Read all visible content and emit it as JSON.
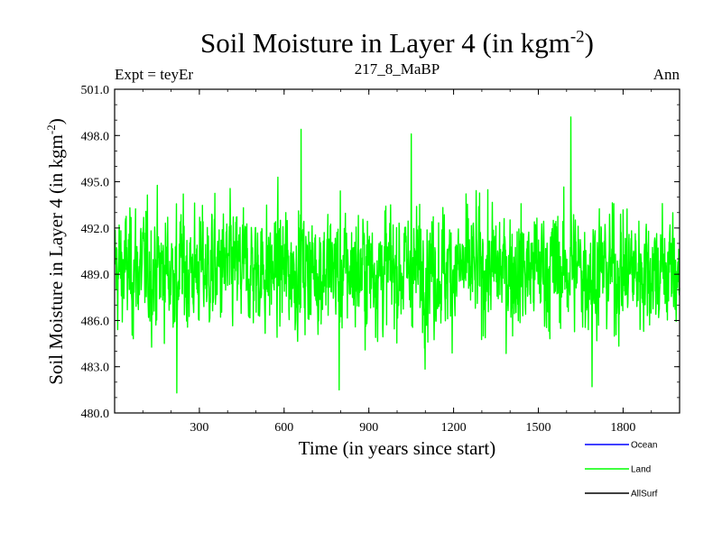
{
  "header": {
    "title": "Soil Moisture in Layer 4 (in kgm",
    "title_exp": "-2",
    "title_close": ")",
    "left": "Expt = teyEr",
    "center": "217_8_MaBP",
    "right": "Ann"
  },
  "chart_data": {
    "type": "line",
    "xlabel": "Time (in years since start)",
    "ylabel": "Soil Moisture in Layer 4 (in kgm",
    "ylabel_exp": "-2",
    "ylabel_close": ")",
    "xlim": [
      0,
      2000
    ],
    "ylim": [
      480.0,
      501.0
    ],
    "x_ticks": [
      300,
      600,
      900,
      1200,
      1500,
      1800
    ],
    "y_ticks": [
      "480.0",
      "483.0",
      "486.0",
      "489.0",
      "492.0",
      "495.0",
      "498.0",
      "501.0"
    ],
    "grid": false,
    "legend_position": "bottom-right",
    "series": [
      {
        "name": "Ocean",
        "color": "#0000ff",
        "values": []
      },
      {
        "name": "Land",
        "color": "#00ff00",
        "values": []
      },
      {
        "name": "AllSurf",
        "color": "#000000",
        "values": []
      }
    ],
    "land_series": {
      "x_start": 1,
      "x_end": 2000,
      "mean": 489.3,
      "typical_range": [
        484.5,
        494.5
      ],
      "min": 481.3,
      "max": 499.2,
      "noted_extremes": [
        {
          "x": 220,
          "y": 481.3
        },
        {
          "x": 660,
          "y": 498.4
        },
        {
          "x": 795,
          "y": 481.5
        },
        {
          "x": 1050,
          "y": 498.1
        },
        {
          "x": 1615,
          "y": 499.2
        },
        {
          "x": 1690,
          "y": 481.7
        }
      ]
    }
  }
}
